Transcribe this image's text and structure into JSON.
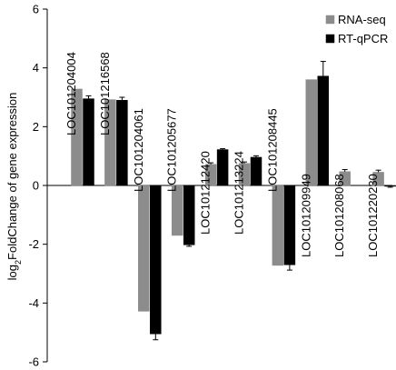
{
  "chart_data": {
    "type": "bar",
    "title": "",
    "xlabel": "",
    "ylabel": "log2FoldChange of gene expression",
    "ylabel_parts": {
      "prefix": "log",
      "subscript": "2",
      "suffix": "FoldChange of gene expression"
    },
    "ylim": [
      -6,
      6
    ],
    "yticks": [
      "6",
      "4",
      "2",
      "0",
      "-2",
      "-4",
      "-6"
    ],
    "ytick_values": [
      6,
      4,
      2,
      0,
      -2,
      -4,
      -6
    ],
    "grid": false,
    "legend_position": "top-right",
    "categories": [
      "LOC101204004",
      "LOC101216568",
      "LOC101204061",
      "LOC101205677",
      "LOC101212420",
      "LOC101213224",
      "LOC101208445",
      "LOC101209949",
      "LOC101208068",
      "LOC101220230"
    ],
    "series": [
      {
        "name": "RNA-seq",
        "color": "#8c8c8c",
        "values": [
          3.28,
          2.92,
          -4.28,
          -1.7,
          0.72,
          0.75,
          -2.72,
          3.6,
          0.47,
          0.45
        ],
        "errors": [
          0.0,
          0.0,
          0.0,
          0.0,
          0.05,
          0.05,
          0.0,
          0.0,
          0.07,
          0.07
        ]
      },
      {
        "name": "RT-qPCR",
        "color": "#000000",
        "values": [
          2.95,
          2.9,
          -5.05,
          -2.02,
          1.22,
          0.96,
          -2.7,
          3.72,
          0.0,
          -0.03
        ],
        "errors": [
          0.1,
          0.1,
          0.2,
          0.05,
          0.03,
          0.05,
          0.18,
          0.5,
          0.0,
          0.03
        ]
      }
    ]
  }
}
